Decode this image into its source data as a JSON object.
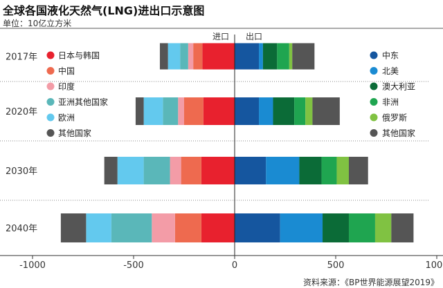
{
  "title": "全球各国液化天然气(LNG)进出口示意图",
  "unit": "单位：10亿立方米",
  "source": "资料来源：《BP世界能源展望2019》",
  "chart_data": {
    "type": "bar",
    "orientation": "horizontal",
    "stacked": true,
    "diverging": true,
    "import_label": "进口",
    "export_label": "出口",
    "categories": [
      "2017年",
      "2020年",
      "2030年",
      "2040年"
    ],
    "xlim": [
      -1000,
      1000
    ],
    "xticks": [
      -1000,
      -500,
      0,
      500,
      1000
    ],
    "xtick_labels": [
      "-1000",
      "-500",
      "0",
      "500",
      "1000"
    ],
    "grid": false,
    "import_series": [
      {
        "name": "日本与韩国",
        "color": "#e8212e",
        "values": [
          -160,
          -155,
          -165,
          -165
        ]
      },
      {
        "name": "中国",
        "color": "#ee6a4f",
        "values": [
          -45,
          -95,
          -100,
          -130
        ]
      },
      {
        "name": "印度",
        "color": "#f39ca7",
        "values": [
          -25,
          -30,
          -55,
          -115
        ]
      },
      {
        "name": "亚洲其他国家",
        "color": "#5ab7b9",
        "values": [
          -40,
          -75,
          -130,
          -200
        ]
      },
      {
        "name": "欧洲",
        "color": "#63c9ee",
        "values": [
          -60,
          -95,
          -130,
          -125
        ]
      },
      {
        "name": "其他国家",
        "color": "#555555",
        "values": [
          -40,
          -40,
          -65,
          -125
        ]
      }
    ],
    "export_series": [
      {
        "name": "中东",
        "color": "#15569f",
        "values": [
          120,
          120,
          155,
          225
        ]
      },
      {
        "name": "北美",
        "color": "#1a8bd2",
        "values": [
          20,
          70,
          165,
          210
        ]
      },
      {
        "name": "澳大利亚",
        "color": "#0b6b37",
        "values": [
          70,
          105,
          110,
          130
        ]
      },
      {
        "name": "非洲",
        "color": "#1fa550",
        "values": [
          60,
          55,
          75,
          130
        ]
      },
      {
        "name": "俄罗斯",
        "color": "#80c242",
        "values": [
          15,
          35,
          60,
          80
        ]
      },
      {
        "name": "其他国家",
        "color": "#555555",
        "values": [
          110,
          135,
          95,
          110
        ]
      }
    ]
  }
}
